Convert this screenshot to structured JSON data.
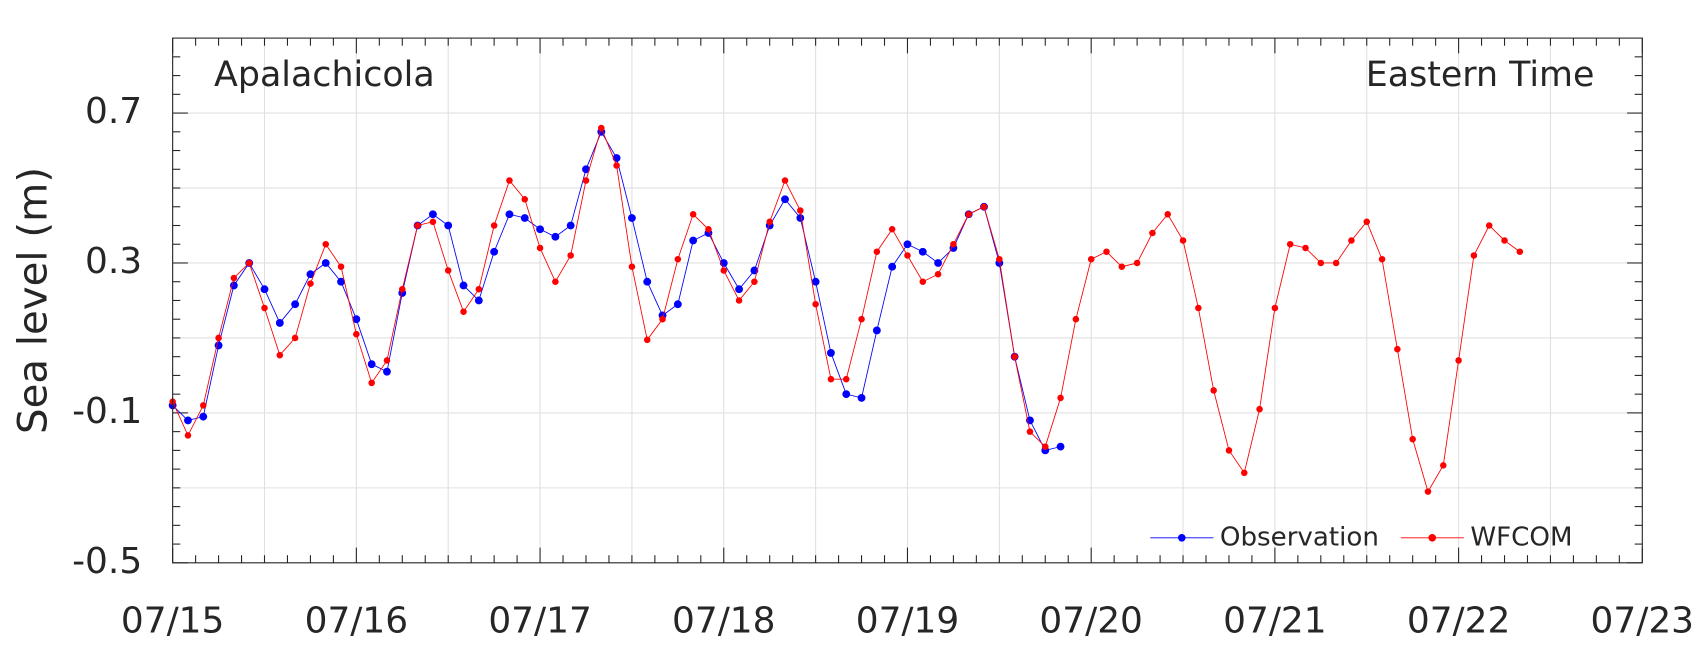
{
  "chart_data": {
    "type": "line",
    "ylabel": "Sea level (m)",
    "annotations": [
      "Apalachicola",
      "Eastern Time"
    ],
    "xlim": [
      0,
      192
    ],
    "xticks": [
      {
        "value": 0,
        "label": "07/15"
      },
      {
        "value": 24,
        "label": "07/16"
      },
      {
        "value": 48,
        "label": "07/17"
      },
      {
        "value": 72,
        "label": "07/18"
      },
      {
        "value": 96,
        "label": "07/19"
      },
      {
        "value": 120,
        "label": "07/20"
      },
      {
        "value": 144,
        "label": "07/21"
      },
      {
        "value": 168,
        "label": "07/22"
      },
      {
        "value": 192,
        "label": "07/23"
      }
    ],
    "ylim": [
      -0.5,
      0.9
    ],
    "yticks": [
      -0.5,
      -0.1,
      0.3,
      0.7
    ],
    "grid": true,
    "legend": "lower right",
    "series": [
      {
        "name": "Observation",
        "color": "#0000ff",
        "x": [
          0,
          2,
          4,
          6,
          8,
          10,
          12,
          14,
          16,
          18,
          20,
          22,
          24,
          26,
          28,
          30,
          32,
          34,
          36,
          38,
          40,
          42,
          44,
          46,
          48,
          50,
          52,
          54,
          56,
          58,
          60,
          62,
          64,
          66,
          68,
          70,
          72,
          74,
          76,
          78,
          80,
          82,
          84,
          86,
          88,
          90,
          92,
          94,
          96,
          98,
          100,
          102,
          104,
          106,
          108,
          110,
          112,
          114,
          116
        ],
        "values": [
          -0.08,
          -0.12,
          -0.11,
          0.08,
          0.24,
          0.3,
          0.23,
          0.14,
          0.19,
          0.27,
          0.3,
          0.25,
          0.15,
          0.03,
          0.01,
          0.22,
          0.4,
          0.43,
          0.4,
          0.24,
          0.2,
          0.33,
          0.43,
          0.42,
          0.39,
          0.37,
          0.4,
          0.55,
          0.65,
          0.58,
          0.42,
          0.25,
          0.16,
          0.19,
          0.36,
          0.38,
          0.3,
          0.23,
          0.28,
          0.4,
          0.47,
          0.42,
          0.25,
          0.06,
          -0.05,
          -0.06,
          0.12,
          0.29,
          0.35,
          0.33,
          0.3,
          0.34,
          0.43,
          0.45,
          0.3,
          0.05,
          -0.12,
          -0.2,
          -0.19
        ]
      },
      {
        "name": "WFCOM",
        "color": "#ff0000",
        "x": [
          0,
          2,
          4,
          6,
          8,
          10,
          12,
          14,
          16,
          18,
          20,
          22,
          24,
          26,
          28,
          30,
          32,
          34,
          36,
          38,
          40,
          42,
          44,
          46,
          48,
          50,
          52,
          54,
          56,
          58,
          60,
          62,
          64,
          66,
          68,
          70,
          72,
          74,
          76,
          78,
          80,
          82,
          84,
          86,
          88,
          90,
          92,
          94,
          96,
          98,
          100,
          102,
          104,
          106,
          108,
          110,
          112,
          114,
          116,
          118,
          120,
          122,
          124,
          126,
          128,
          130,
          132,
          134,
          136,
          138,
          140,
          142,
          144,
          146,
          148,
          150,
          152,
          154,
          156,
          158,
          160,
          162,
          164,
          166,
          168,
          170,
          172,
          174,
          176
        ],
        "values": [
          -0.07,
          -0.16,
          -0.08,
          0.1,
          0.26,
          0.3,
          0.18,
          0.054,
          0.1,
          0.245,
          0.35,
          0.29,
          0.11,
          -0.02,
          0.04,
          0.23,
          0.4,
          0.41,
          0.28,
          0.17,
          0.23,
          0.4,
          0.52,
          0.47,
          0.34,
          0.25,
          0.32,
          0.52,
          0.66,
          0.56,
          0.29,
          0.095,
          0.15,
          0.31,
          0.43,
          0.39,
          0.28,
          0.2,
          0.25,
          0.41,
          0.52,
          0.44,
          0.19,
          -0.01,
          -0.01,
          0.15,
          0.33,
          0.39,
          0.32,
          0.25,
          0.27,
          0.35,
          0.43,
          0.45,
          0.31,
          0.05,
          -0.15,
          -0.19,
          -0.06,
          0.15,
          0.31,
          0.33,
          0.29,
          0.3,
          0.38,
          0.43,
          0.36,
          0.18,
          -0.04,
          -0.2,
          -0.26,
          -0.09,
          0.18,
          0.35,
          0.34,
          0.3,
          0.3,
          0.36,
          0.41,
          0.31,
          0.07,
          -0.17,
          -0.31,
          -0.24,
          0.04,
          0.32,
          0.4,
          0.36,
          0.33
        ]
      }
    ]
  }
}
